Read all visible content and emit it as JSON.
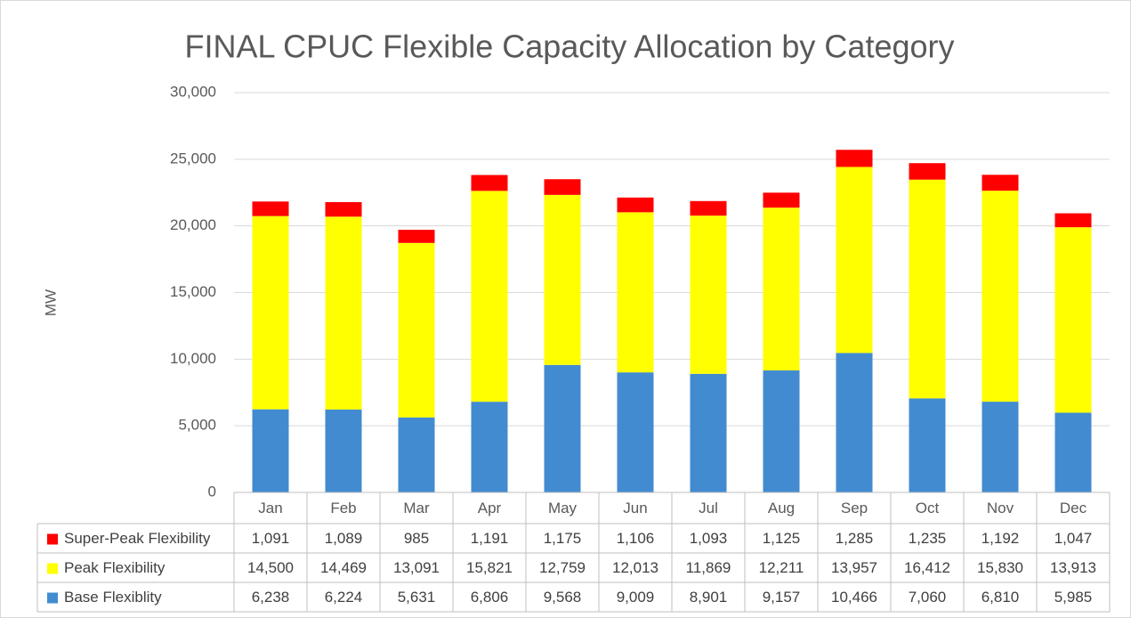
{
  "chart_data": {
    "type": "stacked-bar",
    "title": "FINAL CPUC Flexible Capacity Allocation by Category",
    "y_label": "MW",
    "categories": [
      "Jan",
      "Feb",
      "Mar",
      "Apr",
      "May",
      "Jun",
      "Jul",
      "Aug",
      "Sep",
      "Oct",
      "Nov",
      "Dec"
    ],
    "series": [
      {
        "name": "Super-Peak Flexibility",
        "color": "#ff0000",
        "values": [
          1091,
          1089,
          985,
          1191,
          1175,
          1106,
          1093,
          1125,
          1285,
          1235,
          1192,
          1047
        ],
        "value_labels": [
          "1,091",
          "1,089",
          "985",
          "1,191",
          "1,175",
          "1,106",
          "1,093",
          "1,125",
          "1,285",
          "1,235",
          "1,192",
          "1,047"
        ]
      },
      {
        "name": "Peak Flexibility",
        "color": "#ffff00",
        "values": [
          14500,
          14469,
          13091,
          15821,
          12759,
          12013,
          11869,
          12211,
          13957,
          16412,
          15830,
          13913
        ],
        "value_labels": [
          "14,500",
          "14,469",
          "13,091",
          "15,821",
          "12,759",
          "12,013",
          "11,869",
          "12,211",
          "13,957",
          "16,412",
          "15,830",
          "13,913"
        ]
      },
      {
        "name": "Base Flexiblity",
        "color": "#428bd0",
        "values": [
          6238,
          6224,
          5631,
          6806,
          9568,
          9009,
          8901,
          9157,
          10466,
          7060,
          6810,
          5985
        ],
        "value_labels": [
          "6,238",
          "6,224",
          "5,631",
          "6,806",
          "9,568",
          "9,009",
          "8,901",
          "9,157",
          "10,466",
          "7,060",
          "6,810",
          "5,985"
        ]
      }
    ],
    "ylim": [
      0,
      30000
    ],
    "yticks": [
      0,
      {
        "value": 5000,
        "label": "5,000"
      },
      {
        "value": 10000,
        "label": "10,000"
      },
      {
        "value": 15000,
        "label": "15,000"
      },
      {
        "value": 20000,
        "label": "20,000"
      },
      {
        "value": 25000,
        "label": "25,000"
      },
      {
        "value": 30000,
        "label": "30,000"
      }
    ],
    "grid": true
  }
}
